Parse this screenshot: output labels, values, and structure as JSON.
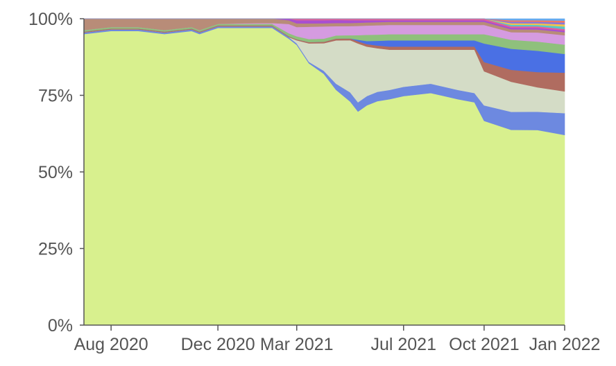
{
  "chart_data": {
    "type": "area",
    "stacked": true,
    "normalized": true,
    "x_tick_labels": [
      "Aug 2020",
      "Dec 2020",
      "Mar 2021",
      "Jul 2021",
      "Oct 2021",
      "Jan 2022"
    ],
    "x_tick_dates": [
      "2020-08-01",
      "2020-12-01",
      "2021-03-01",
      "2021-07-01",
      "2021-10-01",
      "2022-01-01"
    ],
    "x_range": [
      "2020-07-01",
      "2022-01-01"
    ],
    "y_tick_labels": [
      "0%",
      "25%",
      "50%",
      "75%",
      "100%"
    ],
    "y_tick_values": [
      0,
      25,
      50,
      75,
      100
    ],
    "ylim": [
      0,
      100
    ],
    "grid": false,
    "legend": "none",
    "x": [
      "2020-07-01",
      "2020-08-01",
      "2020-09-01",
      "2020-10-01",
      "2020-11-01",
      "2020-11-10",
      "2020-12-01",
      "2021-01-01",
      "2021-02-01",
      "2021-02-20",
      "2021-03-01",
      "2021-03-15",
      "2021-04-01",
      "2021-04-15",
      "2021-05-01",
      "2021-05-10",
      "2021-05-20",
      "2021-06-01",
      "2021-06-15",
      "2021-07-01",
      "2021-08-01",
      "2021-09-01",
      "2021-09-20",
      "2021-10-01",
      "2021-11-01",
      "2021-12-01",
      "2022-01-01"
    ],
    "series": [
      {
        "color": "#d8f08e",
        "values": [
          95,
          96,
          96,
          95,
          96,
          95,
          97,
          97,
          97,
          93,
          91,
          85,
          82,
          76,
          73,
          69,
          71,
          72,
          73,
          74,
          75,
          73,
          72,
          66,
          65,
          64,
          61
        ]
      },
      {
        "color": "#6d89e0",
        "values": [
          0.5,
          0.5,
          0.5,
          0.5,
          0.5,
          0.5,
          0.5,
          0.5,
          0.5,
          0.5,
          0.5,
          0.5,
          1,
          2,
          3,
          3,
          3,
          3,
          3,
          3,
          3,
          3,
          3,
          5,
          6,
          6,
          7
        ]
      },
      {
        "color": "#d4dcc6",
        "values": [
          0,
          0,
          0,
          0,
          0,
          0,
          0,
          0,
          0,
          0,
          1,
          6,
          9,
          14,
          17,
          19,
          16,
          14,
          13,
          12,
          11,
          13,
          14,
          11,
          10,
          8,
          7
        ]
      },
      {
        "color": "#b06c60",
        "values": [
          0.3,
          0.3,
          0.3,
          0.3,
          0.3,
          0.3,
          0.3,
          0.3,
          0.3,
          0.3,
          0.3,
          0.4,
          0.5,
          0.6,
          0.6,
          0.7,
          0.8,
          0.9,
          1,
          1,
          1,
          1,
          1,
          3,
          4,
          5,
          6
        ]
      },
      {
        "color": "#4a70e4",
        "values": [
          0,
          0,
          0,
          0,
          0,
          0,
          0,
          0,
          0,
          0,
          0,
          0,
          0,
          0,
          0,
          0.5,
          1,
          1.5,
          2,
          2,
          2,
          2,
          2,
          6,
          7,
          7,
          6
        ]
      },
      {
        "color": "#8fc07c",
        "values": [
          0.5,
          0.5,
          0.5,
          0.5,
          0.5,
          0.5,
          0.5,
          0.5,
          0.5,
          1,
          1,
          1,
          1,
          1,
          1,
          1.5,
          2,
          2,
          2,
          2,
          2,
          2,
          2,
          3,
          3,
          3,
          3
        ]
      },
      {
        "color": "#d59be0",
        "values": [
          0,
          0,
          0,
          0,
          0,
          0,
          0,
          0.2,
          0.3,
          3,
          3,
          4,
          4,
          3,
          3,
          3,
          3,
          3,
          3,
          3,
          3,
          3,
          3,
          3,
          2.5,
          3,
          3
        ]
      },
      {
        "color": "#b88c78",
        "values": [
          3.7,
          2.7,
          2.7,
          3.7,
          2.7,
          3.7,
          1.7,
          1.5,
          1.4,
          1.2,
          1.2,
          1.1,
          1,
          1,
          1,
          1,
          1,
          1,
          1,
          1,
          1,
          1,
          1,
          1,
          1,
          1,
          1
        ]
      },
      {
        "color": "#a84fd0",
        "values": [
          0,
          0,
          0,
          0,
          0,
          0,
          0,
          0,
          0,
          0.5,
          1,
          1,
          1,
          1,
          0.9,
          0.8,
          0.7,
          0.6,
          0.5,
          0.5,
          0.5,
          0.5,
          0.5,
          0.5,
          0.5,
          0.5,
          0.5
        ]
      },
      {
        "color": "#e0609a",
        "values": [
          0,
          0,
          0,
          0,
          0,
          0,
          0,
          0,
          0,
          0,
          0.5,
          0.5,
          0.5,
          0.4,
          0.5,
          0.5,
          0.5,
          0.5,
          0.5,
          0.5,
          0.5,
          0.5,
          0.5,
          0.5,
          0.5,
          0.5,
          0.5
        ]
      },
      {
        "color": "#58c8c8",
        "values": [
          0,
          0,
          0,
          0,
          0,
          0,
          0,
          0,
          0,
          0,
          0,
          0,
          0,
          0,
          0,
          0,
          0,
          0,
          0,
          0,
          0,
          0,
          0,
          0,
          0.5,
          0.5,
          0.8
        ]
      },
      {
        "color": "#f2c24c",
        "values": [
          0,
          0,
          0,
          0,
          0,
          0,
          0,
          0,
          0,
          0,
          0,
          0,
          0,
          0,
          0,
          0,
          0,
          0,
          0,
          0,
          0,
          0,
          0,
          0,
          0.5,
          0.5,
          0.7
        ]
      },
      {
        "color": "#8877dd",
        "values": [
          0,
          0,
          0,
          0,
          0,
          0,
          0,
          0,
          0,
          0,
          0,
          0,
          0,
          0,
          0,
          0,
          0,
          0,
          0,
          0,
          0,
          0,
          0,
          0,
          0.5,
          0.5,
          0.6
        ]
      },
      {
        "color": "#ee7766",
        "values": [
          0,
          0,
          0,
          0,
          0,
          0,
          0,
          0,
          0,
          0,
          0,
          0,
          0,
          0,
          0,
          0,
          0,
          0,
          0,
          0,
          0,
          0,
          0,
          0,
          0.5,
          0.5,
          0.6
        ]
      },
      {
        "color": "#66aaee",
        "values": [
          0,
          0,
          0,
          0,
          0,
          0,
          0,
          0,
          0,
          0,
          0,
          0,
          0,
          0,
          0,
          0,
          0,
          0,
          0,
          0,
          0,
          0,
          0,
          0,
          0.5,
          0.5,
          0.6
        ]
      }
    ]
  }
}
